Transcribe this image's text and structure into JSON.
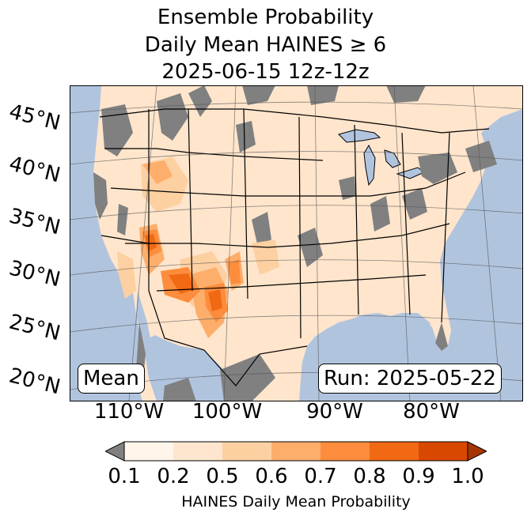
{
  "title": {
    "line1": "Ensemble Probability",
    "line2": "Daily Mean HAINES ≥ 6",
    "line3": "2025-06-15 12z-12z"
  },
  "lat_labels": [
    "45°N",
    "40°N",
    "35°N",
    "30°N",
    "25°N",
    "20°N"
  ],
  "lon_labels": [
    "110°W",
    "100°W",
    "90°W",
    "80°W"
  ],
  "stat_label": "Mean",
  "run_label": "Run: 2025-05-22",
  "colorbar": {
    "ticks": [
      "0.1",
      "0.2",
      "0.5",
      "0.6",
      "0.7",
      "0.8",
      "0.9",
      "1.0"
    ],
    "colors": [
      "#fff5eb",
      "#fee6ce",
      "#fdd0a2",
      "#fdae6b",
      "#fd8d3c",
      "#f16913",
      "#d94801",
      "#a63603"
    ],
    "under_color": "#808080",
    "label": "HAINES Daily Mean Probability"
  },
  "map_colors": {
    "ocean": "#b0c4de",
    "land_low": "#ffe5cc",
    "missing": "#808080"
  }
}
